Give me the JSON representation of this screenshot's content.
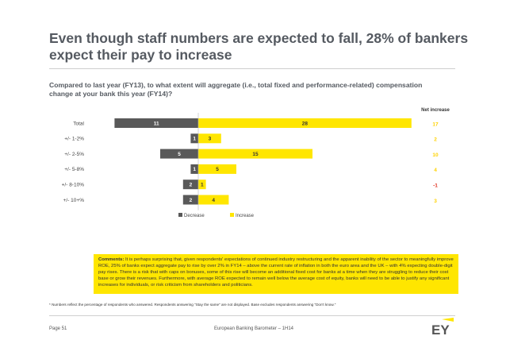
{
  "title": "Even though staff numbers are expected to fall, 28% of bankers expect their pay to increase",
  "question": "Compared to last year (FY13), to what extent will aggregate (i.e., total fixed and performance-related) compensation change at your bank this year (FY14)?",
  "net_header": "Net increase",
  "comments": {
    "label": "Comments:",
    "text": "It is perhaps surprising that, given respondents' expectations of continued industry restructuring and the apparent inability of the sector to meaningfully improve ROE, 25% of banks expect aggregate pay to rise by over 2% in FY14 – above the current rate of inflation in both the euro area and the UK – with 4% expecting double-digit pay rises. There is a risk that with caps on bonuses, some of this rise will become an additional fixed cost for banks at a time when they are struggling to reduce their cost base or grow their revenues. Furthermore, with average ROE expected to remain well below the average cost of equity, banks will need to be able to justify any significant increases for individuals, or risk criticism from shareholders and politicians."
  },
  "footnote": "* Numbers reflect the percentage of respondents who answered. Respondents answering \"Stay the same\" are not displayed. Base excludes respondents answering \"Don't know.\"",
  "footer": {
    "page": "Page 51",
    "center": "European Banking Barometer – 1H14",
    "logo": "EY"
  },
  "colors": {
    "decrease": "#595959",
    "increase": "#ffe600",
    "net_positive": "#ffd200",
    "net_negative": "#e0301e",
    "logo_yellow": "#ffe600",
    "logo_grey": "#555555"
  },
  "chart_data": {
    "type": "bar",
    "orientation": "horizontal-diverging",
    "categories": [
      "Total",
      "+/- 1-2%",
      "+/- 2-5%",
      "+/- 5-8%",
      "+/- 8-10%",
      "+/- 10+%"
    ],
    "series": [
      {
        "name": "Decrease",
        "values": [
          11,
          1,
          5,
          1,
          2,
          2
        ]
      },
      {
        "name": "Increase",
        "values": [
          28,
          3,
          15,
          5,
          1,
          4
        ]
      }
    ],
    "net_increase": [
      17,
      2,
      10,
      4,
      -1,
      3
    ],
    "legend_position": "bottom"
  }
}
